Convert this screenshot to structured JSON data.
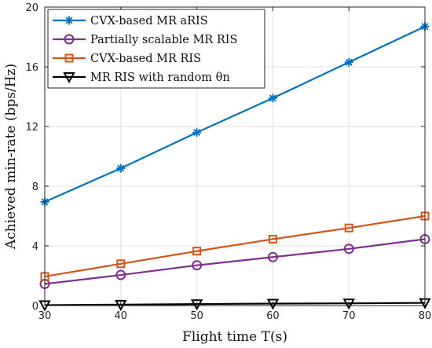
{
  "chart_data": {
    "type": "line",
    "xlabel": "Flight time T(s)",
    "ylabel": "Achieved min-rate (bps/Hz)",
    "xlim": [
      30,
      80
    ],
    "ylim": [
      0,
      20
    ],
    "xticks": [
      30,
      40,
      50,
      60,
      70,
      80
    ],
    "yticks": [
      0,
      4,
      8,
      12,
      16,
      20
    ],
    "grid": true,
    "legend_position": "top-left",
    "x": [
      30,
      40,
      50,
      60,
      70,
      80
    ],
    "series": [
      {
        "name": "CVX-based MR aRIS",
        "color": "#0072BD",
        "marker": "asterisk",
        "values": [
          6.95,
          9.2,
          11.6,
          13.9,
          16.3,
          18.7
        ]
      },
      {
        "name": "Partially scalable MR RIS",
        "color": "#7E2F8E",
        "marker": "circle",
        "values": [
          1.45,
          2.05,
          2.7,
          3.25,
          3.8,
          4.45
        ]
      },
      {
        "name": "CVX-based MR RIS",
        "color": "#D95319",
        "marker": "square",
        "values": [
          1.95,
          2.8,
          3.65,
          4.45,
          5.2,
          6.0
        ]
      },
      {
        "name": "MR RIS with random θn",
        "color": "#000000",
        "marker": "triangle-down",
        "values": [
          0.03,
          0.06,
          0.1,
          0.13,
          0.15,
          0.18
        ]
      }
    ]
  }
}
